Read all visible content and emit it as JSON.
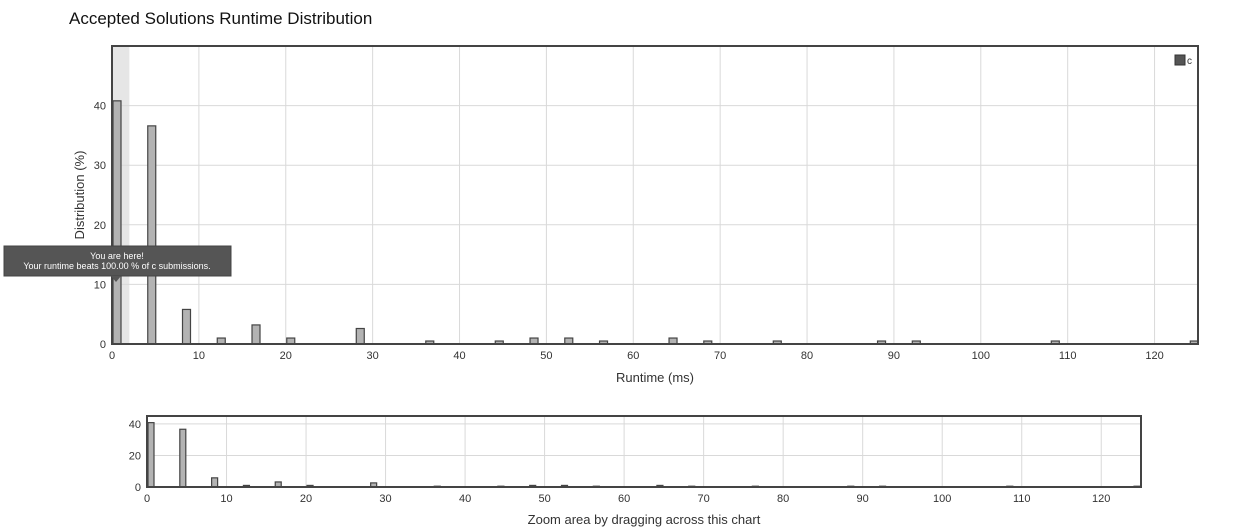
{
  "page": {
    "title": "Accepted Solutions Runtime Distribution"
  },
  "chart_data": [
    {
      "type": "bar",
      "title": "Accepted Solutions Runtime Distribution",
      "xlabel": "Runtime (ms)",
      "ylabel": "Distribution (%)",
      "xlim": [
        0,
        125
      ],
      "ylim": [
        0,
        50
      ],
      "xticks": [
        0,
        10,
        20,
        30,
        40,
        50,
        60,
        70,
        80,
        90,
        100,
        110,
        120
      ],
      "yticks": [
        0,
        10,
        20,
        30,
        40
      ],
      "grid": true,
      "legend": {
        "position": "top-right",
        "entries": [
          "c"
        ]
      },
      "series": [
        {
          "name": "c",
          "color": "#b3b3b3",
          "points": [
            {
              "x": 0,
              "y": 40.8
            },
            {
              "x": 4,
              "y": 36.6
            },
            {
              "x": 8,
              "y": 5.8
            },
            {
              "x": 12,
              "y": 1.0
            },
            {
              "x": 16,
              "y": 3.2
            },
            {
              "x": 20,
              "y": 1.0
            },
            {
              "x": 28,
              "y": 2.6
            },
            {
              "x": 36,
              "y": 0.5
            },
            {
              "x": 44,
              "y": 0.5
            },
            {
              "x": 48,
              "y": 1.0
            },
            {
              "x": 52,
              "y": 1.0
            },
            {
              "x": 56,
              "y": 0.5
            },
            {
              "x": 64,
              "y": 1.0
            },
            {
              "x": 68,
              "y": 0.5
            },
            {
              "x": 76,
              "y": 0.5
            },
            {
              "x": 88,
              "y": 0.5
            },
            {
              "x": 92,
              "y": 0.5
            },
            {
              "x": 108,
              "y": 0.5
            },
            {
              "x": 124,
              "y": 0.5
            }
          ]
        }
      ],
      "highlight_range": [
        0,
        2
      ],
      "tooltip": {
        "line1": "You are here!",
        "line2": "Your runtime beats 100.00 % of c submissions."
      }
    },
    {
      "type": "bar",
      "role": "navigator",
      "xlabel": "Zoom area by dragging across this chart",
      "xlim": [
        0,
        125
      ],
      "ylim": [
        0,
        45
      ],
      "xticks": [
        0,
        10,
        20,
        30,
        40,
        50,
        60,
        70,
        80,
        90,
        100,
        110,
        120
      ],
      "yticks": [
        0,
        20,
        40
      ],
      "grid": true
    }
  ]
}
